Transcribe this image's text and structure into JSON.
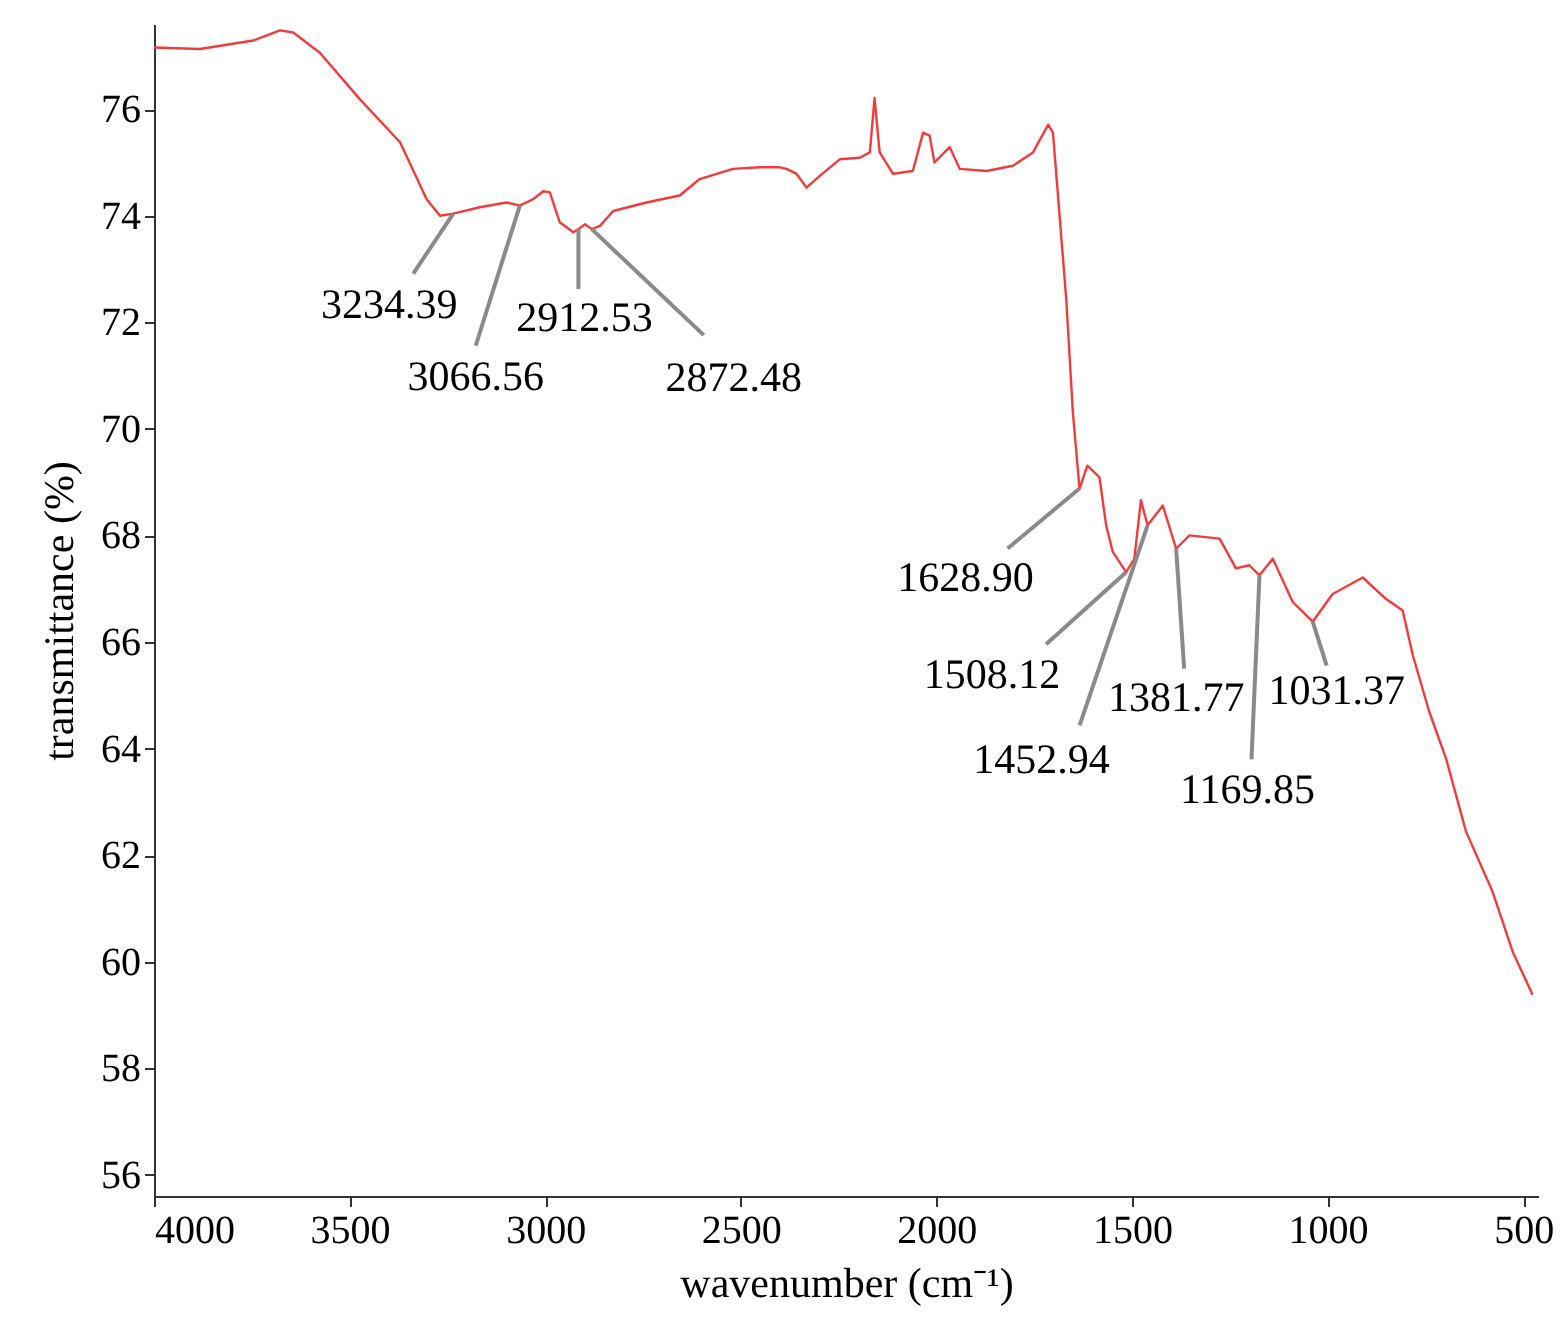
{
  "chart_data": {
    "type": "line",
    "xlabel": "wavenumber (cm⁻¹)",
    "ylabel": "transmittance (%)",
    "xlim": [
      4000,
      462
    ],
    "ylim": [
      55.6,
      77.6
    ],
    "xticks": [
      4000,
      3500,
      3000,
      2500,
      2000,
      1500,
      1000,
      500
    ],
    "yticks": [
      56,
      58,
      60,
      62,
      64,
      66,
      68,
      70,
      72,
      74,
      76
    ],
    "grid": false,
    "marker": "none",
    "line_style": "solid",
    "x": [
      4000,
      3882,
      3746,
      3678,
      3644,
      3576,
      3474,
      3371,
      3303,
      3269,
      3235,
      3167,
      3099,
      3065,
      3031,
      3005,
      2988,
      2963,
      2928,
      2915,
      2898,
      2881,
      2860,
      2826,
      2741,
      2656,
      2605,
      2520,
      2451,
      2400,
      2383,
      2358,
      2332,
      2298,
      2247,
      2196,
      2170,
      2158,
      2145,
      2111,
      2060,
      2034,
      2017,
      2005,
      1966,
      1940,
      1872,
      1804,
      1753,
      1714,
      1702,
      1668,
      1651,
      1634,
      1614,
      1583,
      1566,
      1549,
      1515,
      1494,
      1477,
      1460,
      1421,
      1387,
      1353,
      1276,
      1234,
      1200,
      1174,
      1140,
      1089,
      1038,
      987,
      910,
      851,
      808,
      782,
      740,
      697,
      646,
      578,
      527,
      476
    ],
    "series": [
      {
        "color": "#f03c3c",
        "values": [
          77.16,
          77.13,
          77.29,
          77.48,
          77.44,
          77.06,
          76.19,
          75.38,
          74.31,
          74.0,
          74.04,
          74.16,
          74.25,
          74.19,
          74.31,
          74.46,
          74.44,
          73.88,
          73.69,
          73.75,
          73.84,
          73.75,
          73.81,
          74.09,
          74.25,
          74.38,
          74.69,
          74.88,
          74.91,
          74.91,
          74.88,
          74.79,
          74.53,
          74.75,
          75.06,
          75.09,
          75.19,
          76.21,
          75.19,
          74.79,
          74.84,
          75.56,
          75.5,
          75.0,
          75.29,
          74.88,
          74.84,
          74.94,
          75.19,
          75.71,
          75.56,
          72.44,
          70.31,
          68.88,
          69.31,
          69.09,
          68.19,
          67.69,
          67.31,
          67.56,
          68.66,
          68.19,
          68.56,
          67.75,
          68.0,
          67.94,
          67.38,
          67.44,
          67.25,
          67.56,
          66.75,
          66.38,
          66.9,
          67.21,
          66.81,
          66.59,
          65.75,
          64.69,
          63.81,
          62.44,
          61.31,
          60.19,
          59.38
        ]
      }
    ],
    "annotations": [
      {
        "text": "3234.39",
        "x": 3235,
        "y": 74.04
      },
      {
        "text": "3066.56",
        "x": 3065,
        "y": 74.19
      },
      {
        "text": "2912.53",
        "x": 2915,
        "y": 73.75
      },
      {
        "text": "2872.48",
        "x": 2881,
        "y": 73.75
      },
      {
        "text": "1628.90",
        "x": 1634,
        "y": 68.88
      },
      {
        "text": "1508.12",
        "x": 1515,
        "y": 67.31
      },
      {
        "text": "1452.94",
        "x": 1460,
        "y": 68.19
      },
      {
        "text": "1381.77",
        "x": 1387,
        "y": 67.75
      },
      {
        "text": "1169.85",
        "x": 1174,
        "y": 67.25
      },
      {
        "text": "1031.37",
        "x": 1038,
        "y": 66.38
      }
    ]
  }
}
